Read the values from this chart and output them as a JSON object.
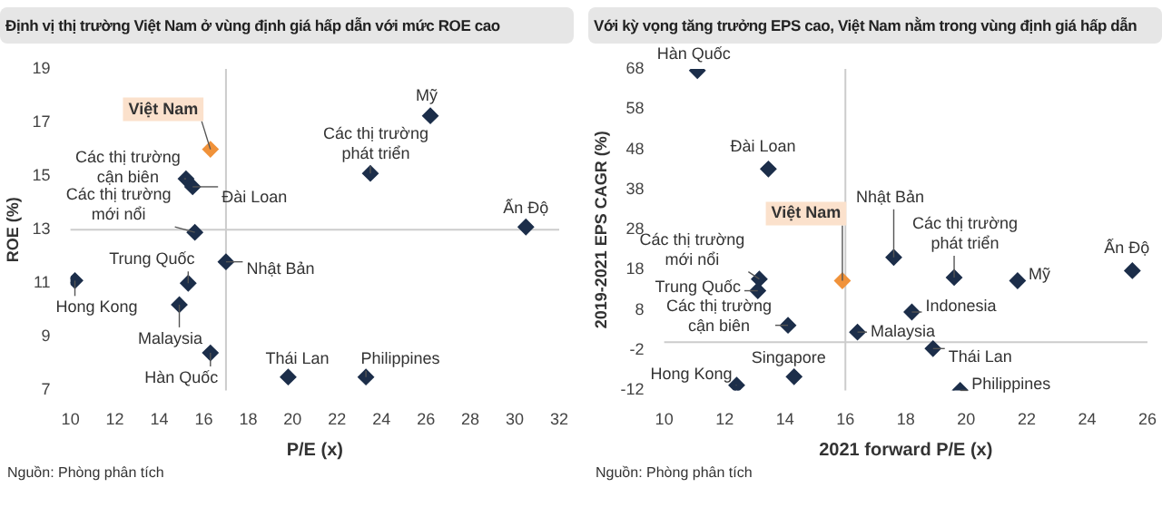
{
  "chart_data": [
    {
      "type": "scatter",
      "title": "Định vị thị trường Việt Nam ở vùng định giá hấp dẫn với mức ROE cao",
      "xlabel": "P/E (x)",
      "ylabel": "ROE (%)",
      "marker": "diamond",
      "grid": false,
      "legend": false,
      "x": [
        16.3,
        26.2,
        23.5,
        15.2,
        15.5,
        15.6,
        30.5,
        17.0,
        15.3,
        10.2,
        14.9,
        16.3,
        19.8,
        23.3
      ],
      "values": [
        16.0,
        17.25,
        15.1,
        14.9,
        14.6,
        12.9,
        13.1,
        11.8,
        11.0,
        11.1,
        10.2,
        8.4,
        7.5,
        7.5
      ],
      "colors": [
        "#f0923a",
        "#1c2e4a",
        "#1c2e4a",
        "#1c2e4a",
        "#1c2e4a",
        "#1c2e4a",
        "#1c2e4a",
        "#1c2e4a",
        "#1c2e4a",
        "#1c2e4a",
        "#1c2e4a",
        "#1c2e4a",
        "#1c2e4a",
        "#1c2e4a"
      ],
      "xlim": [
        10,
        32
      ],
      "xticks": [
        10,
        12,
        14,
        16,
        18,
        20,
        22,
        24,
        26,
        28,
        30,
        32
      ],
      "ylim": [
        7,
        19
      ],
      "yticks": [
        7,
        9,
        11,
        13,
        15,
        17,
        19
      ],
      "ref_lines": [
        {
          "axis": "x",
          "value": 17,
          "color": "#cccccc"
        },
        {
          "axis": "y",
          "value": 13,
          "color": "#cccccc"
        }
      ],
      "annotations": [
        {
          "text": "Việt Nam",
          "x": 16.3,
          "y": 16.0
        },
        {
          "text": "Mỹ",
          "x": 26.2,
          "y": 17.25
        },
        {
          "text": "Các thị trường phát triển",
          "x": 23.5,
          "y": 15.1
        },
        {
          "text": "Các thị trường cận biên",
          "x": 15.2,
          "y": 14.9
        },
        {
          "text": "Đài Loan",
          "x": 15.5,
          "y": 14.6
        },
        {
          "text": "Các thị trường mới nổi",
          "x": 15.6,
          "y": 12.9
        },
        {
          "text": "Ấn Độ",
          "x": 30.5,
          "y": 13.1
        },
        {
          "text": "Nhật Bản",
          "x": 17.0,
          "y": 11.8
        },
        {
          "text": "Trung Quốc",
          "x": 15.3,
          "y": 11.0
        },
        {
          "text": "Hong Kong",
          "x": 10.2,
          "y": 11.1
        },
        {
          "text": "Malaysia",
          "x": 14.9,
          "y": 10.2
        },
        {
          "text": "Hàn Quốc",
          "x": 16.3,
          "y": 8.4
        },
        {
          "text": "Thái Lan",
          "x": 19.8,
          "y": 7.5
        },
        {
          "text": "Philippines",
          "x": 23.3,
          "y": 7.5
        },
        "Nguồn: Phòng phân tích"
      ]
    },
    {
      "type": "scatter",
      "title": "Với kỳ vọng tăng trưởng EPS cao, Việt Nam nằm trong vùng định giá hấp dẫn",
      "xlabel": "2021 forward P/E (x)",
      "ylabel": "2019-2021 EPS CAGR (%)",
      "marker": "diamond",
      "grid": false,
      "legend": false,
      "x": [
        11.1,
        13.45,
        15.9,
        17.6,
        19.6,
        21.7,
        25.5,
        13.15,
        13.1,
        18.2,
        14.1,
        16.4,
        18.9,
        12.4,
        14.3,
        19.8
      ],
      "values": [
        67.6,
        43.1,
        15.3,
        21.1,
        16.1,
        15.3,
        17.8,
        15.7,
        12.8,
        7.5,
        4.2,
        2.5,
        -1.6,
        -10.7,
        -8.6,
        -12.0
      ],
      "colors": [
        "#1c2e4a",
        "#1c2e4a",
        "#f0923a",
        "#1c2e4a",
        "#1c2e4a",
        "#1c2e4a",
        "#1c2e4a",
        "#1c2e4a",
        "#1c2e4a",
        "#1c2e4a",
        "#1c2e4a",
        "#1c2e4a",
        "#1c2e4a",
        "#1c2e4a",
        "#1c2e4a",
        "#1c2e4a"
      ],
      "xlim": [
        10,
        26
      ],
      "xticks": [
        10,
        12,
        14,
        16,
        18,
        20,
        22,
        24,
        26
      ],
      "ylim": [
        -12,
        68
      ],
      "yticks": [
        -12,
        -2,
        8,
        18,
        28,
        38,
        48,
        58,
        68
      ],
      "ref_lines": [
        {
          "axis": "x",
          "value": 16,
          "color": "#cccccc"
        },
        {
          "axis": "y",
          "value": 0,
          "color": "#cccccc"
        }
      ],
      "annotations": [
        {
          "text": "Hàn Quốc",
          "x": 11.1,
          "y": 67.6
        },
        {
          "text": "Đài Loan",
          "x": 13.45,
          "y": 43.1
        },
        {
          "text": "Việt Nam",
          "x": 15.9,
          "y": 15.3
        },
        {
          "text": "Nhật Bản",
          "x": 17.6,
          "y": 21.1
        },
        {
          "text": "Các thị trường phát triển",
          "x": 19.6,
          "y": 16.1
        },
        {
          "text": "Mỹ",
          "x": 21.7,
          "y": 15.3
        },
        {
          "text": "Ấn Độ",
          "x": 25.5,
          "y": 17.8
        },
        {
          "text": "Các thị trường mới nổi",
          "x": 13.15,
          "y": 15.7
        },
        {
          "text": "Trung Quốc",
          "x": 13.1,
          "y": 12.8
        },
        {
          "text": "Indonesia",
          "x": 18.2,
          "y": 7.5
        },
        {
          "text": "Các thị trường cận biên",
          "x": 14.1,
          "y": 4.2
        },
        {
          "text": "Malaysia",
          "x": 16.4,
          "y": 2.5
        },
        {
          "text": "Thái Lan",
          "x": 18.9,
          "y": -1.6
        },
        {
          "text": "Hong Kong",
          "x": 12.4,
          "y": -10.7
        },
        {
          "text": "Singapore",
          "x": 14.3,
          "y": -8.6
        },
        {
          "text": "Philippines",
          "x": 19.8,
          "y": -12.0
        },
        "Nguồn: Phòng phân tích"
      ]
    }
  ]
}
